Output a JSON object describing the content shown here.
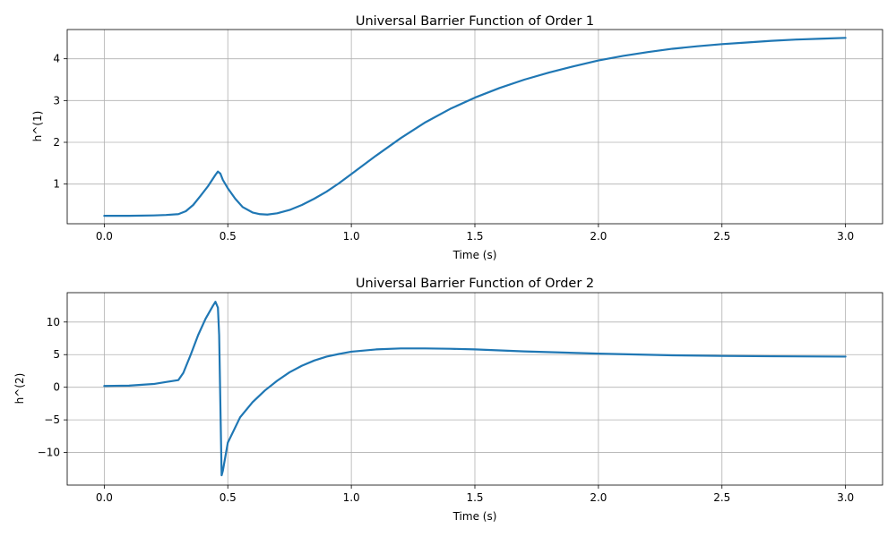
{
  "chart_data": [
    {
      "type": "line",
      "title": "Universal Barrier Function of Order 1",
      "xlabel": "Time (s)",
      "ylabel": "h^(1)",
      "xlim": [
        -0.15,
        3.15
      ],
      "ylim": [
        0.05,
        4.7
      ],
      "xticks": [
        0.0,
        0.5,
        1.0,
        1.5,
        2.0,
        2.5,
        3.0
      ],
      "xtick_labels": [
        "0.0",
        "0.5",
        "1.0",
        "1.5",
        "2.0",
        "2.5",
        "3.0"
      ],
      "yticks": [
        1,
        2,
        3,
        4
      ],
      "ytick_labels": [
        "1",
        "2",
        "3",
        "4"
      ],
      "grid": true,
      "color": "#1f77b4",
      "series": [
        {
          "x": [
            0.0,
            0.1,
            0.2,
            0.25,
            0.3,
            0.33,
            0.36,
            0.39,
            0.42,
            0.45,
            0.46,
            0.47,
            0.48,
            0.5,
            0.53,
            0.56,
            0.6,
            0.63,
            0.66,
            0.7,
            0.75,
            0.8,
            0.85,
            0.9,
            0.95,
            1.0,
            1.1,
            1.2,
            1.3,
            1.4,
            1.5,
            1.6,
            1.7,
            1.8,
            1.9,
            2.0,
            2.1,
            2.2,
            2.3,
            2.4,
            2.5,
            2.6,
            2.7,
            2.8,
            2.9,
            3.0
          ],
          "y": [
            0.24,
            0.24,
            0.25,
            0.26,
            0.28,
            0.35,
            0.5,
            0.72,
            0.95,
            1.22,
            1.3,
            1.25,
            1.1,
            0.9,
            0.65,
            0.45,
            0.32,
            0.28,
            0.27,
            0.3,
            0.38,
            0.5,
            0.65,
            0.82,
            1.02,
            1.24,
            1.68,
            2.1,
            2.48,
            2.8,
            3.07,
            3.3,
            3.5,
            3.67,
            3.82,
            3.96,
            4.07,
            4.16,
            4.24,
            4.3,
            4.35,
            4.39,
            4.43,
            4.46,
            4.48,
            4.5
          ]
        }
      ]
    },
    {
      "type": "line",
      "title": "Universal Barrier Function of Order 2",
      "xlabel": "Time (s)",
      "ylabel": "h^(2)",
      "xlim": [
        -0.15,
        3.15
      ],
      "ylim": [
        -15.0,
        14.5
      ],
      "xticks": [
        0.0,
        0.5,
        1.0,
        1.5,
        2.0,
        2.5,
        3.0
      ],
      "xtick_labels": [
        "0.0",
        "0.5",
        "1.0",
        "1.5",
        "2.0",
        "2.5",
        "3.0"
      ],
      "yticks": [
        -10,
        -5,
        0,
        5,
        10
      ],
      "ytick_labels": [
        "−10",
        "−5",
        "0",
        "5",
        "10"
      ],
      "grid": true,
      "color": "#1f77b4",
      "series": [
        {
          "x": [
            0.0,
            0.1,
            0.2,
            0.25,
            0.3,
            0.32,
            0.35,
            0.38,
            0.41,
            0.44,
            0.45,
            0.46,
            0.465,
            0.475,
            0.48,
            0.5,
            0.55,
            0.6,
            0.65,
            0.7,
            0.75,
            0.8,
            0.85,
            0.9,
            0.95,
            1.0,
            1.1,
            1.2,
            1.3,
            1.4,
            1.5,
            1.7,
            2.0,
            2.3,
            2.5,
            2.7,
            3.0
          ],
          "y": [
            0.2,
            0.25,
            0.5,
            0.8,
            1.1,
            2.2,
            5.0,
            8.0,
            10.5,
            12.5,
            13.1,
            12.2,
            8.0,
            -13.5,
            -12.8,
            -8.5,
            -4.6,
            -2.3,
            -0.5,
            1.0,
            2.3,
            3.3,
            4.1,
            4.7,
            5.1,
            5.45,
            5.8,
            5.95,
            5.95,
            5.9,
            5.8,
            5.5,
            5.15,
            4.9,
            4.8,
            4.75,
            4.7
          ]
        }
      ]
    }
  ]
}
